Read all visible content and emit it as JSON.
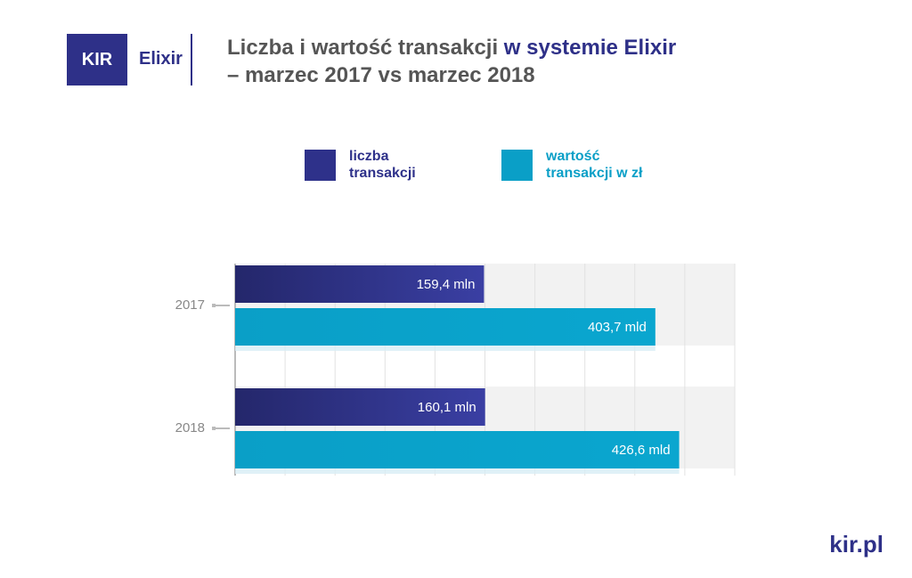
{
  "logo": {
    "brand": "KIR",
    "product": "Elixir"
  },
  "footer": "kir.pl",
  "chart_data": {
    "type": "bar",
    "title": "Liczba i wartość transakcji",
    "title_highlight": "w systemie Elixir",
    "subtitle": "– marzec 2017 vs marzec 2018",
    "categories": [
      "2017",
      "2018"
    ],
    "series": [
      {
        "name": "liczba transakcji",
        "color": "#2e318a",
        "values": [
          159.4,
          160.1
        ],
        "value_labels": [
          "159,4 mln",
          "160,1 mln"
        ]
      },
      {
        "name": "wartość transakcji w zł",
        "color": "#0a9fc7",
        "values": [
          403.7,
          426.6
        ],
        "value_labels": [
          "403,7 mld",
          "426,6 mld"
        ],
        "axis": "x2"
      }
    ],
    "xlim": [
      0,
      320
    ],
    "x2lim": [
      0,
      480
    ],
    "grid": true
  }
}
